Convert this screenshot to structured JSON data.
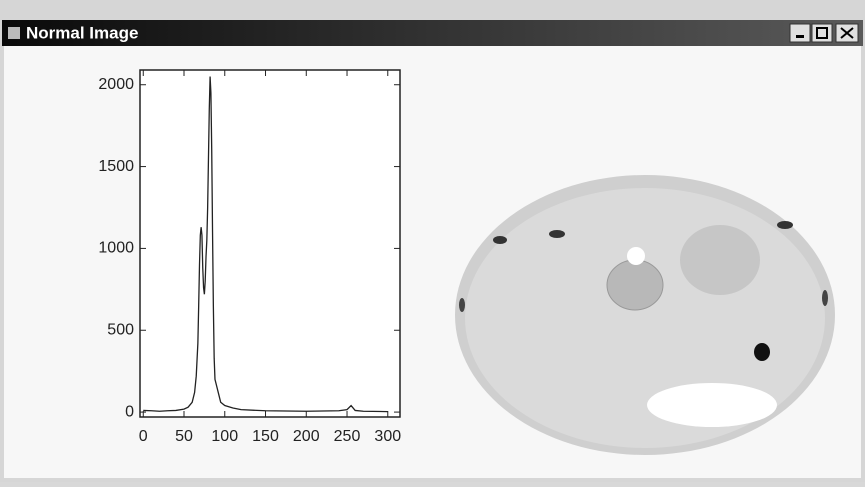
{
  "window": {
    "title": "Normal Image"
  },
  "chart_data": {
    "type": "line",
    "x": [
      0,
      10,
      20,
      30,
      40,
      50,
      55,
      60,
      63,
      65,
      67,
      68,
      69,
      70,
      71,
      72,
      73,
      74,
      75,
      76,
      77,
      78,
      79,
      80,
      81,
      82,
      83,
      84,
      85,
      86,
      87,
      88,
      90,
      92,
      95,
      100,
      110,
      120,
      150,
      200,
      240,
      250,
      255,
      260,
      270,
      300
    ],
    "series": [
      {
        "color": "#222222",
        "values": [
          10,
          8,
          5,
          8,
          10,
          18,
          30,
          60,
          120,
          220,
          420,
          650,
          900,
          1080,
          1130,
          1080,
          880,
          760,
          720,
          800,
          950,
          1050,
          1250,
          1550,
          1850,
          2050,
          1950,
          1600,
          1100,
          650,
          330,
          200,
          160,
          120,
          60,
          40,
          25,
          15,
          8,
          5,
          8,
          15,
          40,
          10,
          5,
          3
        ]
      }
    ],
    "xlim": [
      -4,
      315
    ],
    "ylim": [
      -30,
      2090
    ],
    "xticks": [
      0,
      50,
      100,
      150,
      200,
      250,
      300
    ],
    "yticks": [
      0,
      500,
      1000,
      1500,
      2000
    ]
  }
}
